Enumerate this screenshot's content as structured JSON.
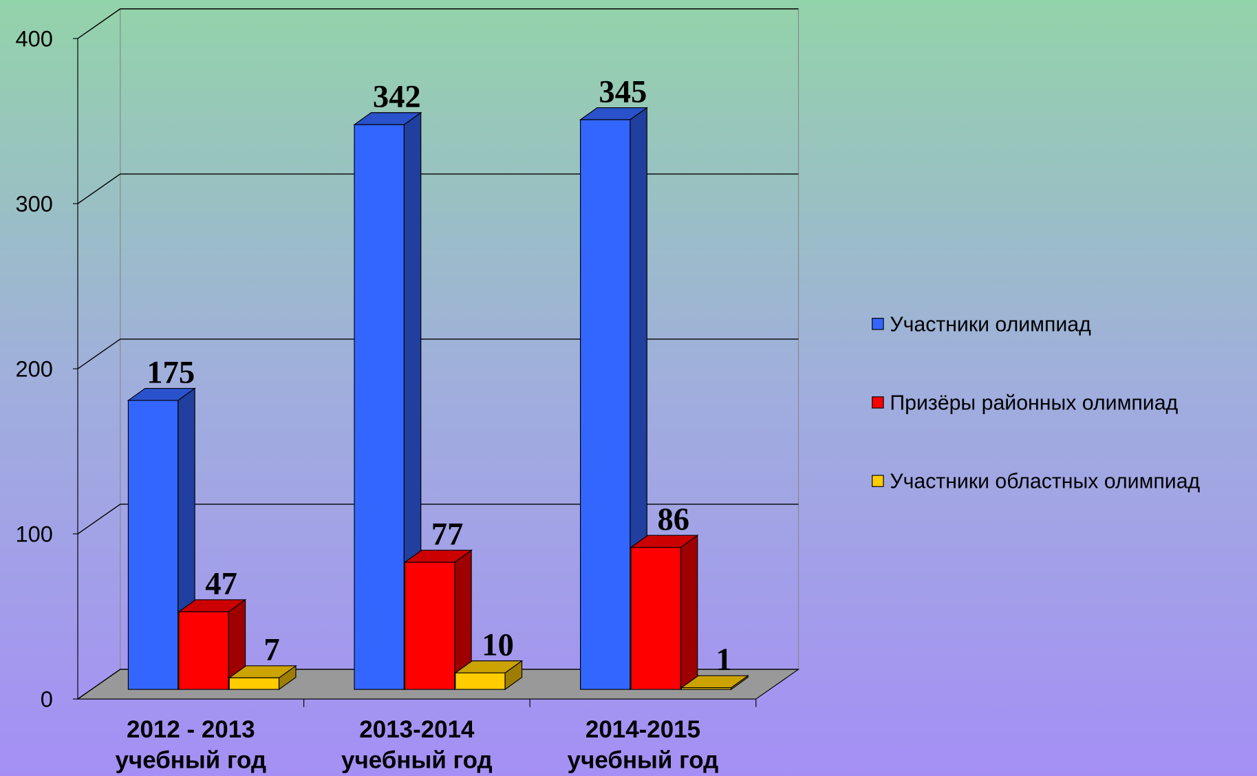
{
  "chart_data": {
    "type": "bar3d",
    "categories": [
      "2012 - 2013 учебный год",
      "2013-2014 учебный год",
      "2014-2015 учебный год"
    ],
    "series": [
      {
        "name": "Участники олимпиад",
        "color": "#3366ff",
        "values": [
          175,
          342,
          345
        ]
      },
      {
        "name": "Призёры районных олимпиад",
        "color": "#ff0000",
        "values": [
          47,
          77,
          86
        ]
      },
      {
        "name": "Участники областных олимпиад",
        "color": "#ffcc00",
        "values": [
          7,
          10,
          1
        ]
      }
    ],
    "ylim": [
      0,
      400
    ],
    "yticks": [
      0,
      100,
      200,
      300,
      400
    ],
    "grid": true,
    "legend": "right"
  }
}
